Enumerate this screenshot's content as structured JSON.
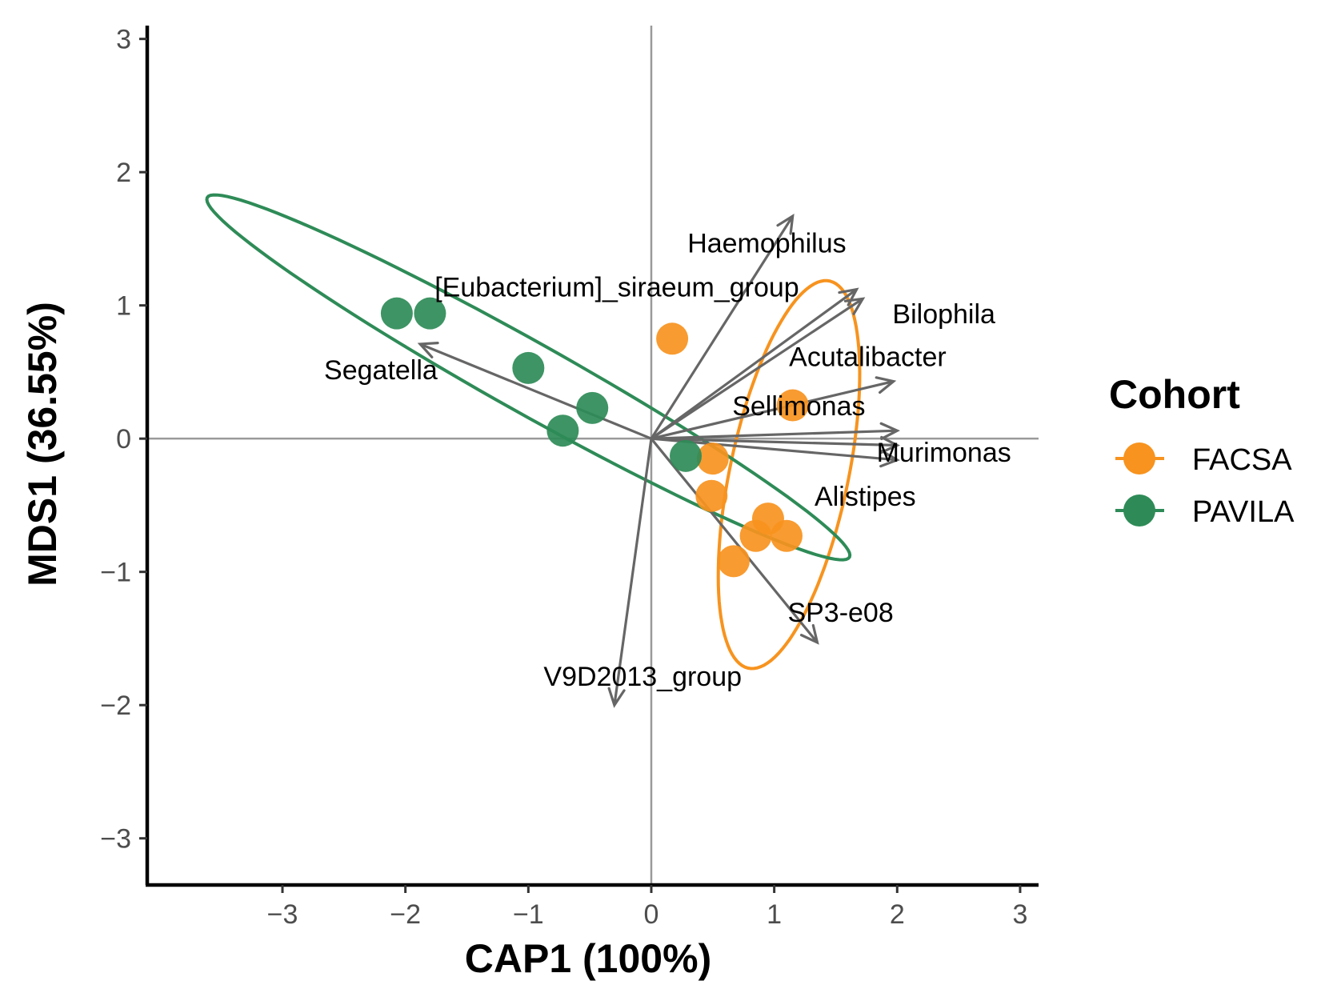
{
  "chart_data": {
    "type": "scatter",
    "title": "",
    "xlabel": "CAP1 (100%)",
    "ylabel": "MDS1 (36.55%)",
    "xlim": [
      -4.1,
      3.15
    ],
    "ylim": [
      -3.35,
      3.1
    ],
    "xticks": [
      {
        "value": -3,
        "label": "−3"
      },
      {
        "value": -2,
        "label": "−2"
      },
      {
        "value": -1,
        "label": "−1"
      },
      {
        "value": 0,
        "label": "0"
      },
      {
        "value": 1,
        "label": "1"
      },
      {
        "value": 2,
        "label": "2"
      },
      {
        "value": 3,
        "label": "3"
      }
    ],
    "yticks": [
      {
        "value": 3,
        "label": "3"
      },
      {
        "value": 2,
        "label": "2"
      },
      {
        "value": 1,
        "label": "1"
      },
      {
        "value": 0,
        "label": "0"
      },
      {
        "value": -1,
        "label": "−1"
      },
      {
        "value": -2,
        "label": "−2"
      },
      {
        "value": -3,
        "label": "−3"
      }
    ],
    "reference_lines": {
      "x": 0,
      "y": 0
    },
    "legend": {
      "title": "Cohort",
      "placement": "right",
      "entries": [
        {
          "name": "FACSA",
          "color": "#F7931E"
        },
        {
          "name": "PAVILA",
          "color": "#2E8B57"
        }
      ]
    },
    "series": [
      {
        "name": "FACSA",
        "color": "#F7931E",
        "points": [
          {
            "x": 0.17,
            "y": 0.75
          },
          {
            "x": 1.15,
            "y": 0.25
          },
          {
            "x": 0.5,
            "y": -0.15
          },
          {
            "x": 0.49,
            "y": -0.43
          },
          {
            "x": 0.95,
            "y": -0.6
          },
          {
            "x": 1.1,
            "y": -0.73
          },
          {
            "x": 0.85,
            "y": -0.73
          },
          {
            "x": 0.67,
            "y": -0.92
          }
        ],
        "ellipse": {
          "cx": 1.12,
          "cy": -0.27,
          "rx": 1.49,
          "ry": 0.48,
          "angle_deg": 77
        }
      },
      {
        "name": "PAVILA",
        "color": "#2E8B57",
        "points": [
          {
            "x": -2.07,
            "y": 0.94
          },
          {
            "x": -1.8,
            "y": 0.94
          },
          {
            "x": -1.0,
            "y": 0.53
          },
          {
            "x": -0.48,
            "y": 0.23
          },
          {
            "x": -0.72,
            "y": 0.06
          },
          {
            "x": 0.28,
            "y": -0.13
          }
        ],
        "ellipse": {
          "cx": -1.0,
          "cy": 0.46,
          "rx": 2.94,
          "ry": 0.27,
          "angle_deg": -27.3
        }
      }
    ],
    "vectors": [
      {
        "name": "Haemophilus",
        "x": 1.15,
        "y": 1.67
      },
      {
        "name": "[Eubacterium]_siraeum_group",
        "x": 1.67,
        "y": 1.12
      },
      {
        "name": "Bilophila",
        "x": 1.72,
        "y": 1.05
      },
      {
        "name": "Acutalibacter",
        "x": 1.97,
        "y": 0.43
      },
      {
        "name": "Sellimonas",
        "x": 2.0,
        "y": 0.06
      },
      {
        "name": "Murimonas",
        "x": 2.0,
        "y": -0.05
      },
      {
        "name": "Alistipes",
        "x": 2.0,
        "y": -0.16
      },
      {
        "name": "SP3-e08",
        "x": 1.35,
        "y": -1.53
      },
      {
        "name": "V9D2013_group",
        "x": -0.3,
        "y": -2.0
      },
      {
        "name": "Segatella",
        "x": -1.88,
        "y": 0.71
      }
    ],
    "vector_labels": [
      {
        "name": "Haemophilus",
        "x": 0.94,
        "y": 1.45
      },
      {
        "name": "[Eubacterium]_siraeum_group",
        "x": -0.28,
        "y": 1.12
      },
      {
        "name": "Bilophila",
        "x": 2.38,
        "y": 0.92
      },
      {
        "name": "Acutalibacter",
        "x": 1.76,
        "y": 0.6
      },
      {
        "name": "Sellimonas",
        "x": 1.2,
        "y": 0.23
      },
      {
        "name": "Murimonas",
        "x": 2.38,
        "y": -0.12
      },
      {
        "name": "Alistipes",
        "x": 1.74,
        "y": -0.45
      },
      {
        "name": "SP3-e08",
        "x": 1.54,
        "y": -1.32
      },
      {
        "name": "V9D2013_group",
        "x": -0.07,
        "y": -1.8
      },
      {
        "name": "Segatella",
        "x": -2.2,
        "y": 0.5
      }
    ]
  }
}
